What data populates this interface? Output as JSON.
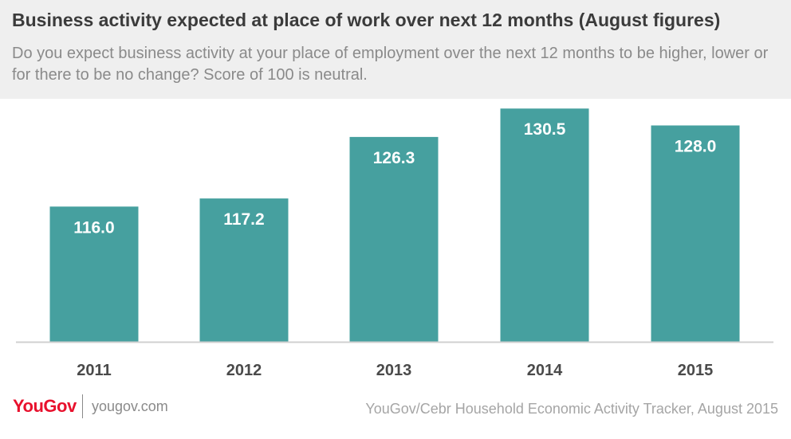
{
  "header": {
    "title": "Business activity expected at place of work over next 12 months (August figures)",
    "subtitle": "Do you expect business activity at your place of employment over the next 12 months to be higher, lower or for there to be no change? Score of 100 is neutral."
  },
  "chart_data": {
    "type": "bar",
    "title": "Business activity expected at place of work over next 12 months (August figures)",
    "subtitle": "Do you expect business activity at your place of employment over the next 12 months to be higher, lower or for there to be no change? Score of 100 is neutral.",
    "categories": [
      "2011",
      "2012",
      "2013",
      "2014",
      "2015"
    ],
    "values": [
      116.0,
      117.2,
      126.3,
      130.5,
      128.0
    ],
    "value_labels": [
      "116.0",
      "117.2",
      "126.3",
      "130.5",
      "128.0"
    ],
    "xlabel": "",
    "ylabel": "",
    "ylim": [
      96,
      131
    ],
    "grid": false,
    "legend": "none",
    "bar_color": "#46a09f",
    "label_color": "#ffffff"
  },
  "footer": {
    "logo": "YouGov",
    "url": "yougov.com",
    "source": "YouGov/Cebr Household Economic Activity Tracker, August 2015"
  },
  "colors": {
    "brand": "#e8112d",
    "bar": "#46a09f",
    "header_bg": "#efefef"
  }
}
